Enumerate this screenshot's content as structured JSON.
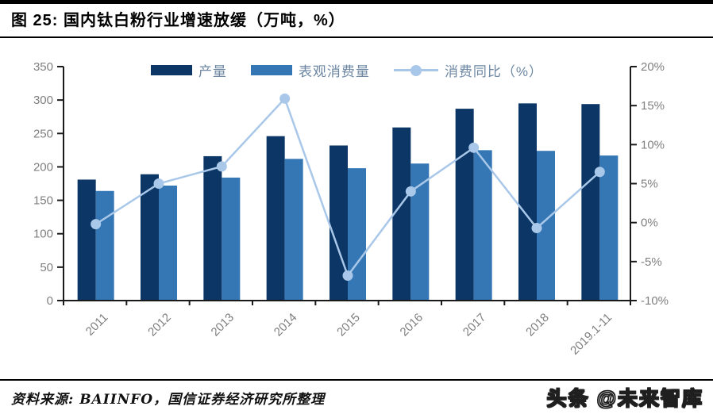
{
  "header": {
    "title": "图 25:  国内钛白粉行业增速放缓（万吨，%）"
  },
  "chart_data": {
    "type": "bar",
    "title": "国内钛白粉行业增速放缓（万吨，%）",
    "categories": [
      "2011",
      "2012",
      "2013",
      "2014",
      "2015",
      "2016",
      "2017",
      "2018",
      "2019.1-11"
    ],
    "series": [
      {
        "name": "产量",
        "type": "bar",
        "axis": "left",
        "color": "#0b3666",
        "values": [
          181,
          189,
          216,
          246,
          232,
          259,
          287,
          295,
          294
        ]
      },
      {
        "name": "表观消费量",
        "type": "bar",
        "axis": "left",
        "color": "#3577b4",
        "values": [
          164,
          172,
          184,
          212,
          198,
          205,
          225,
          224,
          217
        ]
      },
      {
        "name": "消费同比（%）",
        "type": "line",
        "axis": "right",
        "color": "#a9c8e9",
        "values": [
          -0.2,
          5.0,
          7.2,
          15.9,
          -6.8,
          4.0,
          9.6,
          -0.7,
          6.5
        ]
      }
    ],
    "left_axis": {
      "min": 0,
      "max": 350,
      "step": 50,
      "ticks": [
        "350",
        "300",
        "250",
        "200",
        "150",
        "100",
        "50",
        "0"
      ]
    },
    "right_axis": {
      "min": -10,
      "max": 20,
      "step": 5,
      "ticks": [
        "20%",
        "15%",
        "10%",
        "5%",
        "0%",
        "-5%",
        "-10%"
      ]
    },
    "grid": "off",
    "legend_position": "top-center",
    "axis_line_color": "#1a1a1a",
    "tick_label_color": "#7f7f7f",
    "legend_text_color": "#6d87a3"
  },
  "footer": {
    "source": "资料来源: BAIINFO，国信证券经济研究所整理",
    "watermark": "头条 @未来智库"
  }
}
